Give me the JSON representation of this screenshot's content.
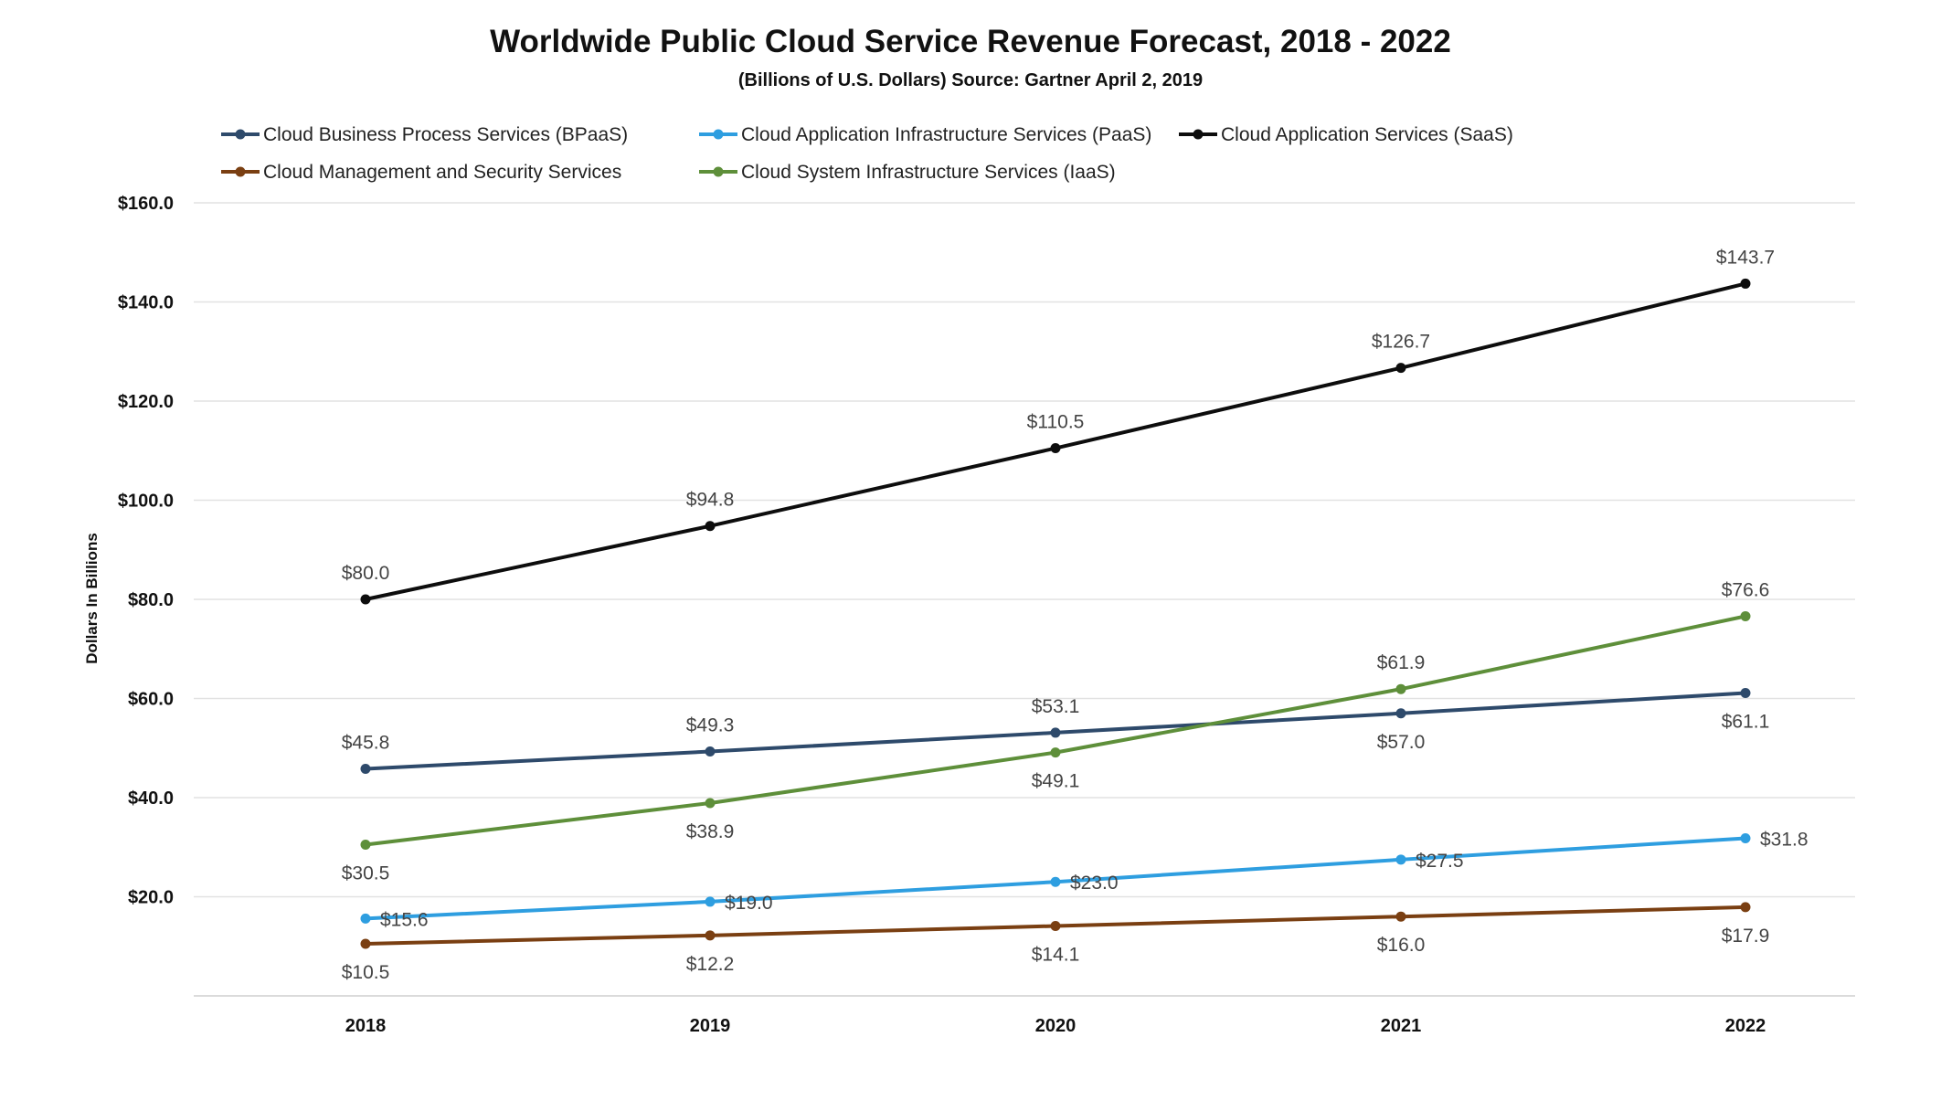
{
  "chart_data": {
    "type": "line",
    "title": "Worldwide Public Cloud Service Revenue Forecast, 2018 - 2022",
    "subtitle": "(Billions of U.S. Dollars) Source: Gartner April 2, 2019",
    "ylabel": "Dollars In Billions",
    "xlabel": "",
    "categories": [
      "2018",
      "2019",
      "2020",
      "2021",
      "2022"
    ],
    "ylim": [
      0,
      160
    ],
    "y_ticks": [
      {
        "value": 20,
        "label": "$20.0"
      },
      {
        "value": 40,
        "label": "$40.0"
      },
      {
        "value": 60,
        "label": "$60.0"
      },
      {
        "value": 80,
        "label": "$80.0"
      },
      {
        "value": 100,
        "label": "$100.0"
      },
      {
        "value": 120,
        "label": "$120.0"
      },
      {
        "value": 140,
        "label": "$140.0"
      },
      {
        "value": 160,
        "label": "$160.0"
      }
    ],
    "grid": true,
    "legend_position": "top-left",
    "series": [
      {
        "name": "Cloud Business Process Services (BPaaS)",
        "color": "#2e4a6b",
        "values": [
          45.8,
          49.3,
          53.1,
          57.0,
          61.1
        ],
        "labels": [
          "$45.8",
          "$49.3",
          "$53.1",
          "$57.0",
          "$61.1"
        ],
        "label_side": [
          "above",
          "above",
          "above",
          "below",
          "below"
        ]
      },
      {
        "name": "Cloud Application Infrastructure Services (PaaS)",
        "color": "#2e9ee0",
        "values": [
          15.6,
          19.0,
          23.0,
          27.5,
          31.8
        ],
        "labels": [
          "$15.6",
          "$19.0",
          "$23.0",
          "$27.5",
          "$31.8"
        ],
        "label_side": [
          "right",
          "right",
          "right",
          "right",
          "right"
        ]
      },
      {
        "name": "Cloud Application Services (SaaS)",
        "color": "#0d0d0d",
        "values": [
          80.0,
          94.8,
          110.5,
          126.7,
          143.7
        ],
        "labels": [
          "$80.0",
          "$94.8",
          "$110.5",
          "$126.7",
          "$143.7"
        ],
        "label_side": [
          "above",
          "above",
          "above",
          "above",
          "above"
        ]
      },
      {
        "name": "Cloud Management and Security Services",
        "color": "#7a3f12",
        "values": [
          10.5,
          12.2,
          14.1,
          16.0,
          17.9
        ],
        "labels": [
          "$10.5",
          "$12.2",
          "$14.1",
          "$16.0",
          "$17.9"
        ],
        "label_side": [
          "below",
          "below",
          "below",
          "below",
          "below"
        ]
      },
      {
        "name": "Cloud System Infrastructure Services (IaaS)",
        "color": "#5e8f3a",
        "values": [
          30.5,
          38.9,
          49.1,
          61.9,
          76.6
        ],
        "labels": [
          "$30.5",
          "$38.9",
          "$49.1",
          "$61.9",
          "$76.6"
        ],
        "label_side": [
          "below",
          "below",
          "below",
          "above",
          "above"
        ]
      }
    ]
  }
}
